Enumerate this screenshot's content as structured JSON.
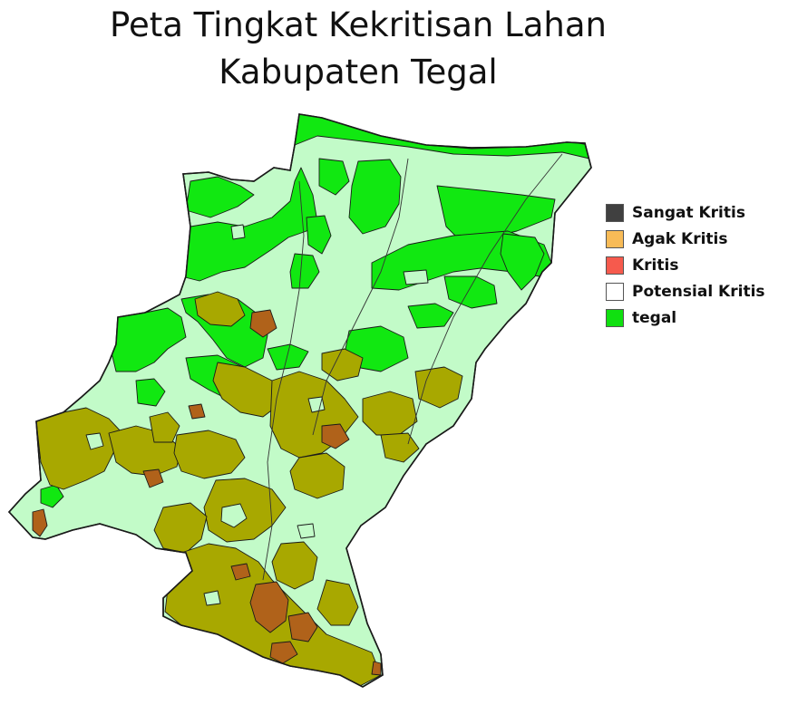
{
  "title": {
    "line1": "Peta Tingkat Kekritisan Lahan",
    "line2": "Kabupaten Tegal"
  },
  "colors": {
    "background_zone": "#c2fbc8",
    "forest_green": "#11e811",
    "olive": "#a8a800",
    "brown": "#b0621a",
    "outline": "#1a1a1a"
  },
  "legend": [
    {
      "label": "Sangat Kritis",
      "color": "#404040"
    },
    {
      "label": "Agak Kritis",
      "color": "#f8bb57"
    },
    {
      "label": "Kritis",
      "color": "#f65a4d"
    },
    {
      "label": "Potensial Kritis",
      "color": "#ffffff"
    },
    {
      "label": "tegal",
      "color": "#10e010"
    }
  ]
}
